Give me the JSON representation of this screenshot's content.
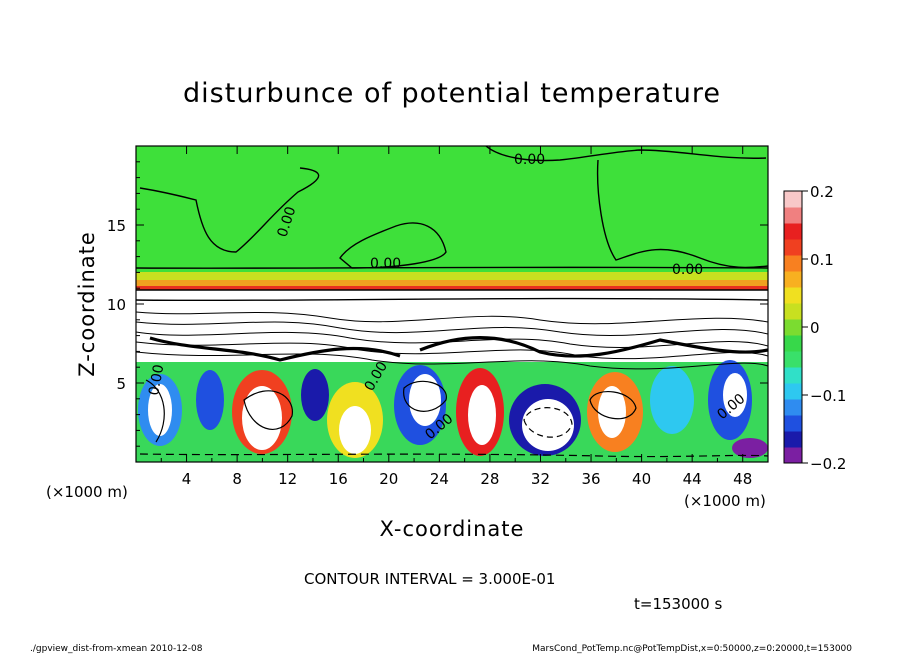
{
  "chart_data": {
    "type": "heatmap",
    "title": "disturbunce of potential temperature",
    "xlabel": "X-coordinate",
    "ylabel": "Z-coordinate",
    "x_unit": "(×1000 m)",
    "y_unit": "(×1000 m)",
    "xlim": [
      0,
      50
    ],
    "ylim": [
      0,
      20
    ],
    "x_ticks": [
      "4",
      "8",
      "12",
      "16",
      "20",
      "24",
      "28",
      "32",
      "36",
      "40",
      "44",
      "48"
    ],
    "y_ticks": [
      "5",
      "10",
      "15"
    ],
    "colorbar": {
      "range": [
        -0.2,
        0.2
      ],
      "ticks": [
        "0.2",
        "0.1",
        "0",
        "−0.1",
        "−0.2"
      ],
      "colors": [
        "#7b1fa2",
        "#1a1aaa",
        "#1f50e0",
        "#2f8cf0",
        "#2ec8f0",
        "#30e0c8",
        "#39e06a",
        "#37d84a",
        "#7bdc30",
        "#c8e020",
        "#f0e020",
        "#f8b020",
        "#f88020",
        "#f04020",
        "#e82020",
        "#f08080",
        "#f8c8c8"
      ]
    },
    "contour_interval": "CONTOUR INTERVAL = 3.000E-01",
    "contour_labels": [
      "0.00",
      "0.00",
      "0.00",
      "0.00",
      "0.00",
      "0.00",
      "0.00",
      "0.00"
    ],
    "time_label": "t=153000 s"
  },
  "footer": {
    "left": "./gpview_dist-from-xmean  2010-12-08",
    "right": "MarsCond_PotTemp.nc@PotTempDist,x=0:50000,z=0:20000,t=153000"
  },
  "colors": {
    "background": "#ffffff",
    "field_green": "#3ee03a",
    "warm_band": "#f0a020",
    "contour": "#000000"
  }
}
